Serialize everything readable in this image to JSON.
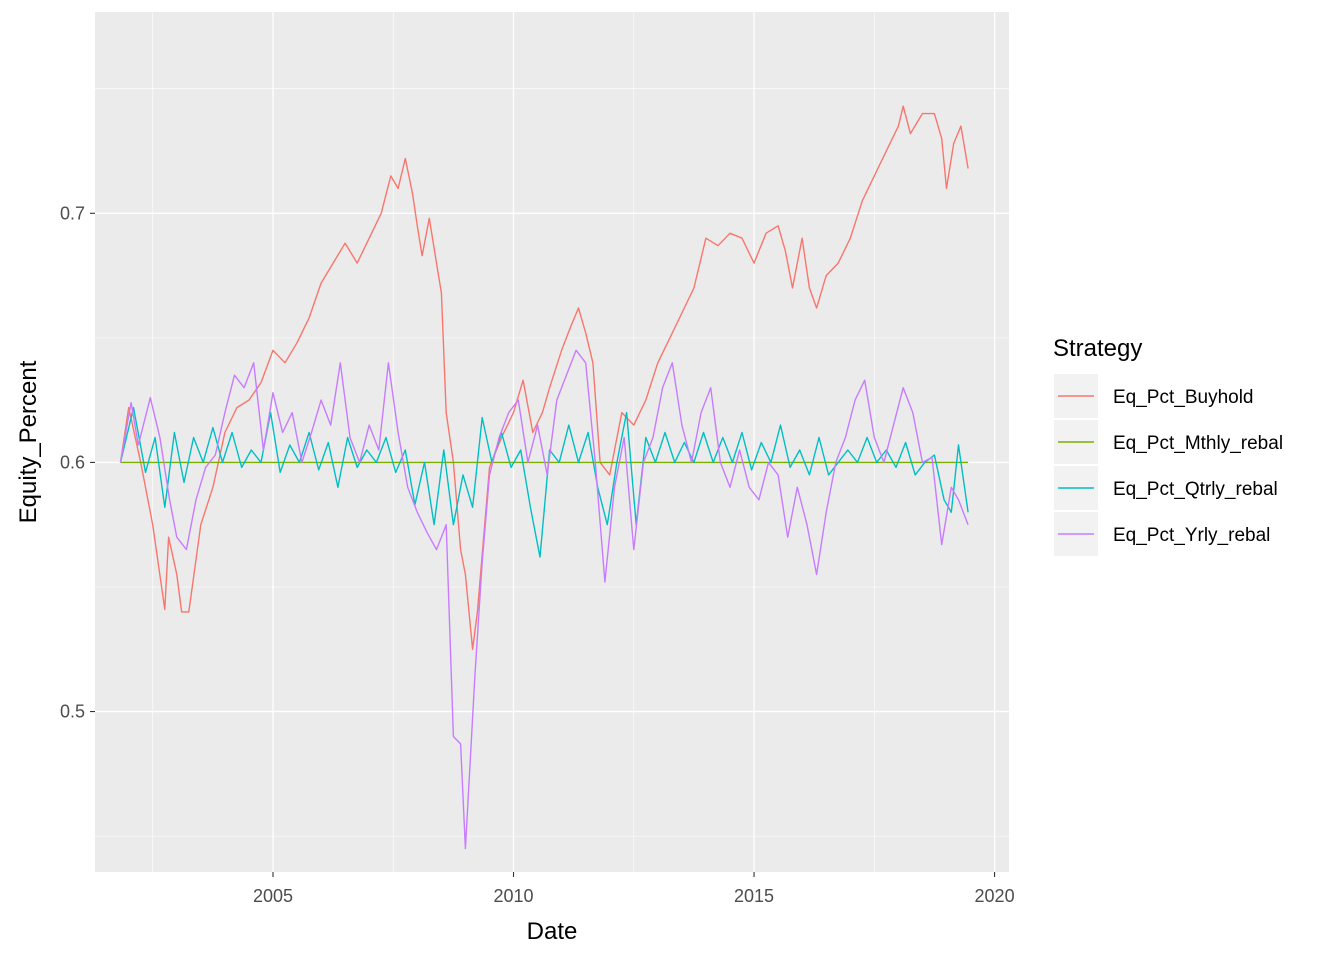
{
  "chart_data": {
    "type": "line",
    "xlabel": "Date",
    "ylabel": "Equity_Percent",
    "xlim": [
      2001.3,
      2020.3
    ],
    "ylim": [
      0.4356,
      0.7808
    ],
    "x_ticks": [
      {
        "value": 2005,
        "label": "2005"
      },
      {
        "value": 2010,
        "label": "2010"
      },
      {
        "value": 2015,
        "label": "2015"
      },
      {
        "value": 2020,
        "label": "2020"
      }
    ],
    "y_ticks": [
      {
        "value": 0.5,
        "label": "0.5"
      },
      {
        "value": 0.6,
        "label": "0.6"
      },
      {
        "value": 0.7,
        "label": "0.7"
      }
    ],
    "legend": {
      "title": "Strategy",
      "position": "right"
    },
    "grid": true,
    "series": [
      {
        "name": "Eq_Pct_Buyhold",
        "color": "#F8766D",
        "x": [
          2001.83,
          2002.0,
          2002.25,
          2002.5,
          2002.75,
          2002.83,
          2003.0,
          2003.1,
          2003.25,
          2003.5,
          2003.75,
          2004.0,
          2004.25,
          2004.5,
          2004.75,
          2005.0,
          2005.25,
          2005.5,
          2005.75,
          2006.0,
          2006.25,
          2006.5,
          2006.75,
          2007.0,
          2007.25,
          2007.45,
          2007.6,
          2007.75,
          2007.9,
          2008.0,
          2008.1,
          2008.25,
          2008.4,
          2008.5,
          2008.6,
          2008.75,
          2008.9,
          2009.0,
          2009.15,
          2009.25,
          2009.4,
          2009.5,
          2009.75,
          2010.0,
          2010.2,
          2010.4,
          2010.6,
          2010.75,
          2011.0,
          2011.2,
          2011.35,
          2011.5,
          2011.65,
          2011.8,
          2012.0,
          2012.25,
          2012.5,
          2012.75,
          2013.0,
          2013.25,
          2013.5,
          2013.75,
          2014.0,
          2014.25,
          2014.5,
          2014.75,
          2015.0,
          2015.25,
          2015.5,
          2015.65,
          2015.8,
          2016.0,
          2016.15,
          2016.3,
          2016.5,
          2016.75,
          2017.0,
          2017.25,
          2017.5,
          2017.75,
          2018.0,
          2018.1,
          2018.25,
          2018.5,
          2018.75,
          2018.9,
          2019.0,
          2019.15,
          2019.3,
          2019.45
        ],
        "y": [
          0.6,
          0.622,
          0.6,
          0.575,
          0.541,
          0.57,
          0.555,
          0.54,
          0.54,
          0.575,
          0.59,
          0.612,
          0.622,
          0.625,
          0.632,
          0.645,
          0.64,
          0.648,
          0.658,
          0.672,
          0.68,
          0.688,
          0.68,
          0.69,
          0.7,
          0.715,
          0.71,
          0.722,
          0.708,
          0.695,
          0.683,
          0.698,
          0.68,
          0.668,
          0.62,
          0.6,
          0.565,
          0.555,
          0.525,
          0.54,
          0.575,
          0.598,
          0.61,
          0.62,
          0.633,
          0.612,
          0.62,
          0.63,
          0.645,
          0.655,
          0.662,
          0.652,
          0.64,
          0.6,
          0.595,
          0.62,
          0.615,
          0.625,
          0.64,
          0.65,
          0.66,
          0.67,
          0.69,
          0.687,
          0.692,
          0.69,
          0.68,
          0.692,
          0.695,
          0.685,
          0.67,
          0.69,
          0.67,
          0.662,
          0.675,
          0.68,
          0.69,
          0.705,
          0.715,
          0.725,
          0.735,
          0.743,
          0.732,
          0.74,
          0.74,
          0.73,
          0.71,
          0.728,
          0.735,
          0.718
        ]
      },
      {
        "name": "Eq_Pct_Mthly_rebal",
        "color": "#7CAE00",
        "x": [
          2001.83,
          2019.45
        ],
        "y": [
          0.6,
          0.6
        ]
      },
      {
        "name": "Eq_Pct_Qtrly_rebal",
        "color": "#00BFC4",
        "x": [
          2001.83,
          2002.1,
          2002.35,
          2002.55,
          2002.75,
          2002.95,
          2003.15,
          2003.35,
          2003.55,
          2003.75,
          2003.95,
          2004.15,
          2004.35,
          2004.55,
          2004.75,
          2004.95,
          2005.15,
          2005.35,
          2005.55,
          2005.75,
          2005.95,
          2006.15,
          2006.35,
          2006.55,
          2006.75,
          2006.95,
          2007.15,
          2007.35,
          2007.55,
          2007.75,
          2007.95,
          2008.15,
          2008.35,
          2008.55,
          2008.75,
          2008.95,
          2009.15,
          2009.35,
          2009.55,
          2009.75,
          2009.95,
          2010.15,
          2010.35,
          2010.55,
          2010.75,
          2010.95,
          2011.15,
          2011.35,
          2011.55,
          2011.75,
          2011.95,
          2012.15,
          2012.35,
          2012.55,
          2012.75,
          2012.95,
          2013.15,
          2013.35,
          2013.55,
          2013.75,
          2013.95,
          2014.15,
          2014.35,
          2014.55,
          2014.75,
          2014.95,
          2015.15,
          2015.35,
          2015.55,
          2015.75,
          2015.95,
          2016.15,
          2016.35,
          2016.55,
          2016.75,
          2016.95,
          2017.15,
          2017.35,
          2017.55,
          2017.75,
          2017.95,
          2018.15,
          2018.35,
          2018.55,
          2018.75,
          2018.95,
          2019.1,
          2019.25,
          2019.45
        ],
        "y": [
          0.6,
          0.622,
          0.596,
          0.61,
          0.582,
          0.612,
          0.592,
          0.61,
          0.6,
          0.614,
          0.6,
          0.612,
          0.598,
          0.605,
          0.6,
          0.62,
          0.596,
          0.607,
          0.6,
          0.612,
          0.597,
          0.608,
          0.59,
          0.61,
          0.598,
          0.605,
          0.6,
          0.61,
          0.596,
          0.605,
          0.583,
          0.6,
          0.575,
          0.605,
          0.575,
          0.595,
          0.582,
          0.618,
          0.6,
          0.612,
          0.598,
          0.605,
          0.582,
          0.562,
          0.605,
          0.6,
          0.615,
          0.6,
          0.612,
          0.59,
          0.575,
          0.6,
          0.62,
          0.575,
          0.61,
          0.6,
          0.612,
          0.6,
          0.608,
          0.6,
          0.612,
          0.6,
          0.61,
          0.6,
          0.612,
          0.597,
          0.608,
          0.6,
          0.615,
          0.598,
          0.605,
          0.595,
          0.61,
          0.595,
          0.6,
          0.605,
          0.6,
          0.61,
          0.6,
          0.605,
          0.598,
          0.608,
          0.595,
          0.6,
          0.603,
          0.585,
          0.58,
          0.607,
          0.58
        ]
      },
      {
        "name": "Eq_Pct_Yrly_rebal",
        "color": "#C77CFF",
        "x": [
          2001.83,
          2002.05,
          2002.2,
          2002.45,
          2002.65,
          2002.85,
          2003.0,
          2003.2,
          2003.4,
          2003.6,
          2003.8,
          2004.0,
          2004.2,
          2004.4,
          2004.6,
          2004.8,
          2005.0,
          2005.2,
          2005.4,
          2005.6,
          2005.8,
          2006.0,
          2006.2,
          2006.4,
          2006.6,
          2006.8,
          2007.0,
          2007.2,
          2007.4,
          2007.6,
          2007.8,
          2008.0,
          2008.2,
          2008.4,
          2008.6,
          2008.75,
          2008.9,
          2009.0,
          2009.1,
          2009.2,
          2009.35,
          2009.5,
          2009.7,
          2009.9,
          2010.1,
          2010.3,
          2010.5,
          2010.7,
          2010.9,
          2011.1,
          2011.3,
          2011.5,
          2011.7,
          2011.9,
          2012.1,
          2012.3,
          2012.5,
          2012.7,
          2012.9,
          2013.1,
          2013.3,
          2013.5,
          2013.7,
          2013.9,
          2014.1,
          2014.3,
          2014.5,
          2014.7,
          2014.9,
          2015.1,
          2015.3,
          2015.5,
          2015.7,
          2015.9,
          2016.1,
          2016.3,
          2016.5,
          2016.7,
          2016.9,
          2017.1,
          2017.3,
          2017.5,
          2017.7,
          2017.9,
          2018.1,
          2018.3,
          2018.5,
          2018.7,
          2018.9,
          2019.1,
          2019.25,
          2019.45
        ],
        "y": [
          0.6,
          0.624,
          0.607,
          0.626,
          0.61,
          0.585,
          0.57,
          0.565,
          0.585,
          0.598,
          0.603,
          0.62,
          0.635,
          0.63,
          0.64,
          0.605,
          0.628,
          0.612,
          0.62,
          0.6,
          0.612,
          0.625,
          0.615,
          0.64,
          0.61,
          0.6,
          0.615,
          0.605,
          0.64,
          0.612,
          0.59,
          0.58,
          0.572,
          0.565,
          0.575,
          0.49,
          0.487,
          0.445,
          0.48,
          0.515,
          0.56,
          0.595,
          0.61,
          0.62,
          0.625,
          0.6,
          0.615,
          0.595,
          0.625,
          0.635,
          0.645,
          0.64,
          0.6,
          0.552,
          0.59,
          0.61,
          0.565,
          0.6,
          0.61,
          0.63,
          0.64,
          0.615,
          0.6,
          0.62,
          0.63,
          0.6,
          0.59,
          0.605,
          0.59,
          0.585,
          0.6,
          0.595,
          0.57,
          0.59,
          0.575,
          0.555,
          0.58,
          0.6,
          0.61,
          0.625,
          0.633,
          0.61,
          0.6,
          0.615,
          0.63,
          0.62,
          0.6,
          0.602,
          0.567,
          0.59,
          0.585,
          0.575
        ]
      }
    ]
  }
}
